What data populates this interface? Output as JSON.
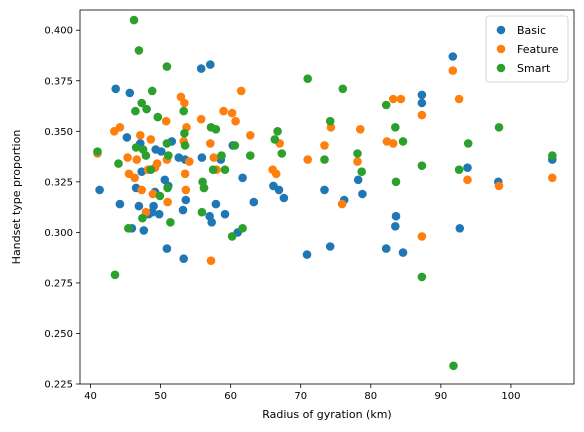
{
  "chart_data": {
    "type": "scatter",
    "title": "",
    "xlabel": "Radius of gyration (km)",
    "ylabel": "Handset type proportion",
    "xlim": [
      38.5,
      109.0
    ],
    "ylim": [
      0.225,
      0.41
    ],
    "xticks": [
      40,
      50,
      60,
      70,
      80,
      90,
      100
    ],
    "yticks": [
      0.225,
      0.25,
      0.275,
      0.3,
      0.325,
      0.35,
      0.375,
      0.4
    ],
    "xtick_labels": [
      "40",
      "50",
      "60",
      "70",
      "80",
      "90",
      "100"
    ],
    "ytick_labels": [
      "0.225",
      "0.250",
      "0.275",
      "0.300",
      "0.325",
      "0.350",
      "0.375",
      "0.400"
    ],
    "grid": false,
    "legend_position": "top-right",
    "series": [
      {
        "name": "Basic",
        "color": "#1f77b4",
        "points": [
          [
            41.3,
            0.321
          ],
          [
            43.6,
            0.371
          ],
          [
            44.2,
            0.314
          ],
          [
            45.2,
            0.347
          ],
          [
            45.6,
            0.369
          ],
          [
            45.9,
            0.302
          ],
          [
            46.5,
            0.322
          ],
          [
            46.9,
            0.313
          ],
          [
            47.1,
            0.344
          ],
          [
            47.3,
            0.33
          ],
          [
            47.6,
            0.301
          ],
          [
            48.3,
            0.309
          ],
          [
            48.8,
            0.31
          ],
          [
            49.0,
            0.313
          ],
          [
            49.2,
            0.32
          ],
          [
            49.3,
            0.341
          ],
          [
            49.8,
            0.309
          ],
          [
            50.1,
            0.34
          ],
          [
            50.6,
            0.326
          ],
          [
            50.9,
            0.292
          ],
          [
            51.1,
            0.323
          ],
          [
            51.6,
            0.345
          ],
          [
            52.6,
            0.337
          ],
          [
            53.2,
            0.311
          ],
          [
            53.3,
            0.287
          ],
          [
            53.5,
            0.336
          ],
          [
            53.6,
            0.316
          ],
          [
            55.8,
            0.381
          ],
          [
            55.9,
            0.337
          ],
          [
            57.1,
            0.383
          ],
          [
            57.0,
            0.308
          ],
          [
            57.3,
            0.305
          ],
          [
            57.9,
            0.314
          ],
          [
            58.6,
            0.336
          ],
          [
            59.2,
            0.309
          ],
          [
            60.3,
            0.343
          ],
          [
            61.0,
            0.3
          ],
          [
            61.7,
            0.327
          ],
          [
            63.3,
            0.315
          ],
          [
            66.1,
            0.323
          ],
          [
            66.9,
            0.321
          ],
          [
            67.6,
            0.317
          ],
          [
            70.9,
            0.289
          ],
          [
            73.4,
            0.321
          ],
          [
            74.2,
            0.293
          ],
          [
            76.2,
            0.316
          ],
          [
            78.2,
            0.326
          ],
          [
            78.8,
            0.319
          ],
          [
            82.2,
            0.292
          ],
          [
            83.5,
            0.303
          ],
          [
            83.6,
            0.308
          ],
          [
            84.6,
            0.29
          ],
          [
            87.3,
            0.368
          ],
          [
            87.3,
            0.364
          ],
          [
            91.7,
            0.387
          ],
          [
            92.7,
            0.302
          ],
          [
            93.8,
            0.332
          ],
          [
            98.2,
            0.325
          ],
          [
            105.9,
            0.336
          ]
        ]
      },
      {
        "name": "Feature",
        "color": "#ff7f0e",
        "points": [
          [
            41.0,
            0.339
          ],
          [
            43.4,
            0.35
          ],
          [
            44.2,
            0.352
          ],
          [
            45.3,
            0.337
          ],
          [
            45.5,
            0.329
          ],
          [
            46.3,
            0.327
          ],
          [
            46.6,
            0.336
          ],
          [
            47.1,
            0.348
          ],
          [
            47.3,
            0.321
          ],
          [
            47.9,
            0.31
          ],
          [
            48.2,
            0.331
          ],
          [
            48.6,
            0.346
          ],
          [
            48.9,
            0.319
          ],
          [
            49.2,
            0.332
          ],
          [
            49.5,
            0.334
          ],
          [
            50.8,
            0.355
          ],
          [
            50.9,
            0.336
          ],
          [
            51.0,
            0.315
          ],
          [
            52.9,
            0.367
          ],
          [
            53.3,
            0.345
          ],
          [
            53.4,
            0.364
          ],
          [
            53.5,
            0.329
          ],
          [
            53.6,
            0.321
          ],
          [
            53.7,
            0.352
          ],
          [
            54.1,
            0.335
          ],
          [
            55.8,
            0.356
          ],
          [
            56.2,
            0.322
          ],
          [
            57.1,
            0.344
          ],
          [
            57.2,
            0.286
          ],
          [
            57.6,
            0.337
          ],
          [
            58.0,
            0.331
          ],
          [
            59.0,
            0.36
          ],
          [
            60.2,
            0.359
          ],
          [
            60.7,
            0.355
          ],
          [
            61.5,
            0.37
          ],
          [
            62.8,
            0.348
          ],
          [
            66.0,
            0.331
          ],
          [
            66.5,
            0.329
          ],
          [
            67.0,
            0.344
          ],
          [
            71.0,
            0.336
          ],
          [
            73.4,
            0.343
          ],
          [
            74.3,
            0.352
          ],
          [
            75.9,
            0.314
          ],
          [
            78.1,
            0.335
          ],
          [
            78.5,
            0.351
          ],
          [
            82.3,
            0.345
          ],
          [
            83.2,
            0.344
          ],
          [
            83.2,
            0.366
          ],
          [
            84.3,
            0.366
          ],
          [
            87.3,
            0.358
          ],
          [
            87.3,
            0.298
          ],
          [
            91.7,
            0.38
          ],
          [
            92.6,
            0.366
          ],
          [
            93.8,
            0.326
          ],
          [
            98.3,
            0.323
          ],
          [
            105.9,
            0.327
          ]
        ]
      },
      {
        "name": "Smart",
        "color": "#2ca02c",
        "points": [
          [
            41.0,
            0.34
          ],
          [
            43.5,
            0.279
          ],
          [
            44.0,
            0.334
          ],
          [
            45.4,
            0.302
          ],
          [
            46.2,
            0.405
          ],
          [
            46.4,
            0.36
          ],
          [
            46.5,
            0.342
          ],
          [
            46.9,
            0.39
          ],
          [
            47.3,
            0.364
          ],
          [
            47.4,
            0.307
          ],
          [
            47.5,
            0.341
          ],
          [
            47.9,
            0.338
          ],
          [
            48.0,
            0.361
          ],
          [
            48.6,
            0.331
          ],
          [
            48.8,
            0.37
          ],
          [
            49.6,
            0.357
          ],
          [
            49.9,
            0.318
          ],
          [
            50.9,
            0.382
          ],
          [
            50.9,
            0.344
          ],
          [
            51.0,
            0.322
          ],
          [
            51.1,
            0.338
          ],
          [
            51.4,
            0.305
          ],
          [
            53.3,
            0.36
          ],
          [
            53.4,
            0.349
          ],
          [
            53.5,
            0.343
          ],
          [
            55.9,
            0.31
          ],
          [
            56.0,
            0.325
          ],
          [
            56.2,
            0.322
          ],
          [
            57.2,
            0.352
          ],
          [
            57.5,
            0.331
          ],
          [
            57.9,
            0.351
          ],
          [
            58.7,
            0.338
          ],
          [
            59.2,
            0.331
          ],
          [
            60.2,
            0.298
          ],
          [
            60.6,
            0.343
          ],
          [
            61.7,
            0.302
          ],
          [
            62.8,
            0.338
          ],
          [
            66.3,
            0.346
          ],
          [
            66.7,
            0.35
          ],
          [
            67.3,
            0.339
          ],
          [
            71.0,
            0.376
          ],
          [
            73.4,
            0.336
          ],
          [
            74.2,
            0.355
          ],
          [
            76.0,
            0.371
          ],
          [
            78.1,
            0.339
          ],
          [
            78.7,
            0.33
          ],
          [
            82.2,
            0.363
          ],
          [
            83.5,
            0.352
          ],
          [
            83.6,
            0.325
          ],
          [
            84.6,
            0.345
          ],
          [
            87.3,
            0.333
          ],
          [
            87.3,
            0.278
          ],
          [
            91.8,
            0.234
          ],
          [
            92.6,
            0.331
          ],
          [
            93.9,
            0.344
          ],
          [
            98.3,
            0.352
          ],
          [
            105.9,
            0.338
          ]
        ]
      }
    ]
  }
}
